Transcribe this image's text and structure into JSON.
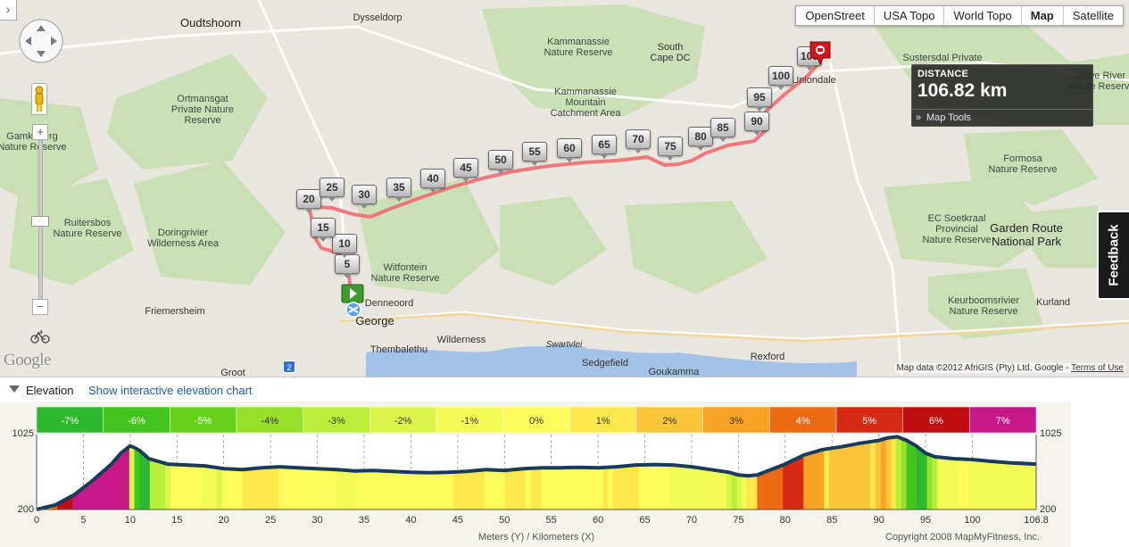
{
  "map": {
    "map_types": [
      {
        "label": "OpenStreet",
        "active": false
      },
      {
        "label": "USA Topo",
        "active": false
      },
      {
        "label": "World Topo",
        "active": false
      },
      {
        "label": "Map",
        "active": true
      },
      {
        "label": "Satellite",
        "active": false
      }
    ],
    "distance": {
      "label": "DISTANCE",
      "value": "106.82 km",
      "tools_label": "Map Tools"
    },
    "feedback_label": "Feedback",
    "attribution": {
      "text": "Map data ©2012 AfriGIS (Pty) Ltd, Google - ",
      "link": "Terms of Use"
    },
    "logo_text": "Google",
    "route_color": "#f06b73",
    "places": {
      "oudtshoorn": "Oudtshoorn",
      "dysseldorp": "Dysseldorp",
      "kammanassie_nr": "Kammanassie\nNature Reserve",
      "south_cape_dc": "South\nCape DC",
      "kammanassie_mcnr": "Kammanassie\nMountain\nCatchment Area",
      "ortmansgat": "Ortmansgat\nPrivate Nature\nReserve",
      "gamkaberg": "Gamkaberg\nNature Reserve",
      "sustersdal": "Sustersdal Private",
      "uniondale": "Uniondale",
      "seweriver": "Sewe River\nNature Reserve",
      "formosa": "Formosa\nNature Reserve",
      "ec_soetkraal": "EC Soetkraal\nProvincial\nNature Reserve",
      "garden_route": "Garden Route\nNational Park",
      "ruitersbos": "Ruitersbos\nNature Reserve",
      "doringrivier": "Doringrivier\nWilderness Area",
      "witfontein": "Witfontein\nNature Reserve",
      "denneoord": "Denneoord",
      "george": "George",
      "friemersheim": "Friemersheim",
      "thembalethu": "Thembalethu",
      "wilderness": "Wilderness",
      "swartvlei": "Swartvlei",
      "sedgefield": "Sedgefield",
      "goukamma": "Goukamma",
      "rexford": "Rexford",
      "keurbooms": "Keurboomsrivier\nNature Reserve",
      "kurland": "Kurland",
      "groot": "Groot"
    },
    "route_markers": [
      "5",
      "10",
      "15",
      "20",
      "25",
      "30",
      "35",
      "40",
      "45",
      "50",
      "55",
      "60",
      "65",
      "70",
      "75",
      "80",
      "85",
      "90",
      "95",
      "100",
      "105"
    ],
    "icons": [
      "pan-control-icon",
      "pegman-icon",
      "zoom-in-icon",
      "zoom-out-icon",
      "bike-icon",
      "start-marker-icon",
      "end-marker-icon"
    ]
  },
  "elevation": {
    "title": "Elevation",
    "link": "Show interactive elevation chart",
    "xlabel": "Meters (Y) / Kilometers (X)",
    "copyright": "Copyright 2008 MapMyFitness, Inc.",
    "y_tick_labels": [
      "1025",
      "200"
    ],
    "grade_legend": [
      {
        "label": "-7%",
        "color": "#2db82d"
      },
      {
        "label": "-6%",
        "color": "#44c41f"
      },
      {
        "label": "-5%",
        "color": "#66d11a"
      },
      {
        "label": "-4%",
        "color": "#96e02a"
      },
      {
        "label": "-3%",
        "color": "#b9ee3a"
      },
      {
        "label": "-2%",
        "color": "#dcf54a"
      },
      {
        "label": "-1%",
        "color": "#f3fb55"
      },
      {
        "label": "0%",
        "color": "#fefc5c"
      },
      {
        "label": "1%",
        "color": "#fde84b"
      },
      {
        "label": "2%",
        "color": "#fbc43a"
      },
      {
        "label": "3%",
        "color": "#f7a326"
      },
      {
        "label": "4%",
        "color": "#ec6a14"
      },
      {
        "label": "5%",
        "color": "#d62a12"
      },
      {
        "label": "6%",
        "color": "#c00d10"
      },
      {
        "label": "7%",
        "color": "#c7188a"
      }
    ],
    "chart_data": {
      "type": "area",
      "xlabel": "Meters (Y) / Kilometers (X)",
      "ylabel": "",
      "xlim": [
        0,
        106.82
      ],
      "ylim": [
        200,
        1025
      ],
      "x_tick_labels": [
        "0",
        "5",
        "10",
        "15",
        "20",
        "25",
        "30",
        "35",
        "40",
        "45",
        "50",
        "55",
        "60",
        "65",
        "70",
        "75",
        "80",
        "85",
        "90",
        "95",
        "100",
        "106.8"
      ],
      "x_ticks": [
        0,
        5,
        10,
        15,
        20,
        25,
        30,
        35,
        40,
        45,
        50,
        55,
        60,
        65,
        70,
        75,
        80,
        85,
        90,
        95,
        100,
        106.82
      ],
      "y_ticks": [
        200,
        1025
      ],
      "grid": true,
      "series": [
        {
          "x": [
            0,
            2,
            4,
            6,
            8,
            9,
            10,
            10.5,
            11,
            12,
            14,
            16,
            18,
            20,
            22,
            24,
            26,
            28,
            30,
            32,
            34,
            36,
            38,
            40,
            42,
            44,
            46,
            48,
            50,
            52,
            54,
            56,
            58,
            60,
            62,
            64,
            66,
            68,
            70,
            72,
            74,
            75,
            76,
            77,
            78,
            80,
            82,
            84,
            86,
            88,
            90,
            91,
            92,
            93,
            94,
            95,
            96,
            98,
            100,
            102,
            104,
            106.82
          ],
          "y": [
            200,
            250,
            360,
            520,
            700,
            820,
            900,
            880,
            850,
            760,
            700,
            690,
            680,
            650,
            640,
            660,
            670,
            660,
            650,
            640,
            625,
            630,
            620,
            610,
            605,
            610,
            620,
            640,
            630,
            650,
            660,
            660,
            665,
            660,
            670,
            690,
            695,
            690,
            670,
            640,
            610,
            580,
            570,
            580,
            620,
            700,
            800,
            860,
            890,
            930,
            960,
            990,
            1000,
            960,
            900,
            820,
            780,
            760,
            750,
            730,
            715,
            700
          ]
        }
      ]
    }
  }
}
